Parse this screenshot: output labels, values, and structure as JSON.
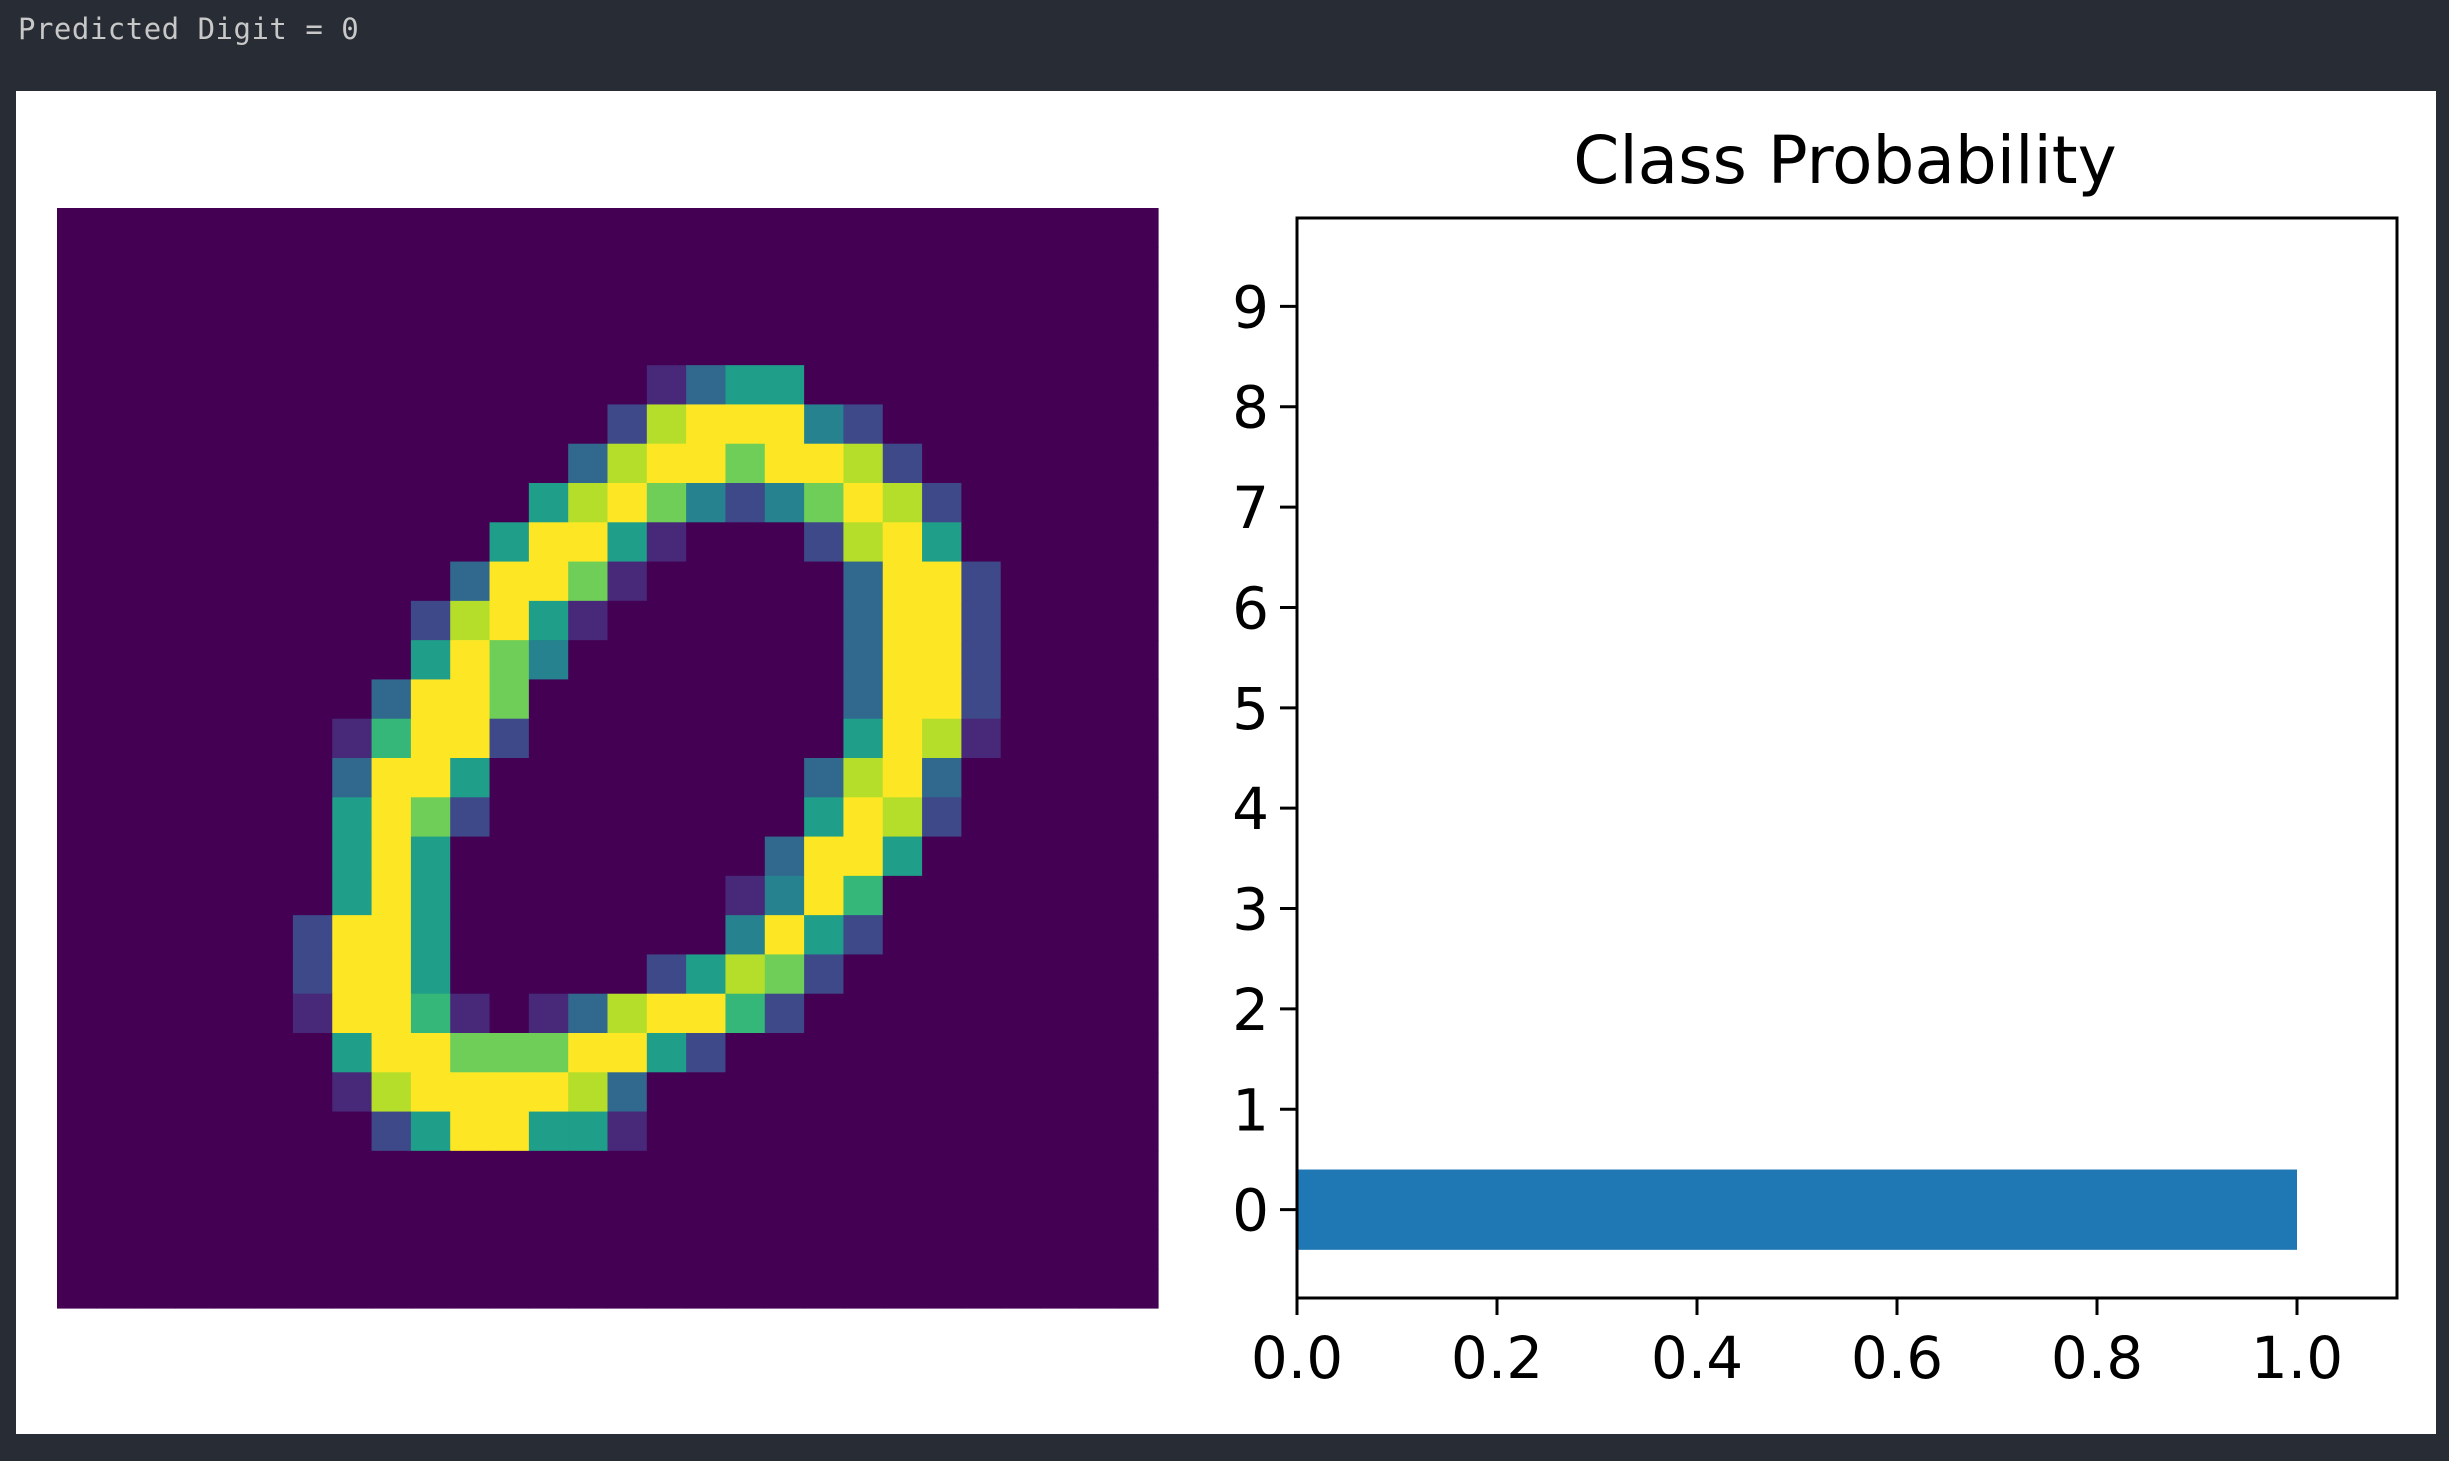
{
  "output": {
    "text": "Predicted Digit = 0"
  },
  "colors": {
    "bar": "#1f77b4",
    "viridis": [
      "#440154",
      "#482878",
      "#3e4989",
      "#31688e",
      "#26828e",
      "#1f9e89",
      "#35b779",
      "#6ece58",
      "#b5de2b",
      "#fde725"
    ]
  },
  "chart_data": [
    {
      "type": "heatmap",
      "colormap": "viridis",
      "rows": 28,
      "cols": 28,
      "value_range": [
        0,
        1
      ],
      "values": [
        [
          0,
          0,
          0,
          0,
          0,
          0,
          0,
          0,
          0,
          0,
          0,
          0,
          0,
          0,
          0,
          0,
          0,
          0,
          0,
          0,
          0,
          0,
          0,
          0,
          0,
          0,
          0,
          0
        ],
        [
          0,
          0,
          0,
          0,
          0,
          0,
          0,
          0,
          0,
          0,
          0,
          0,
          0,
          0,
          0,
          0,
          0,
          0,
          0,
          0,
          0,
          0,
          0,
          0,
          0,
          0,
          0,
          0
        ],
        [
          0,
          0,
          0,
          0,
          0,
          0,
          0,
          0,
          0,
          0,
          0,
          0,
          0,
          0,
          0,
          0,
          0,
          0,
          0,
          0,
          0,
          0,
          0,
          0,
          0,
          0,
          0,
          0
        ],
        [
          0,
          0,
          0,
          0,
          0,
          0,
          0,
          0,
          0,
          0,
          0,
          0,
          0,
          0,
          0,
          0,
          0,
          0,
          0,
          0,
          0,
          0,
          0,
          0,
          0,
          0,
          0,
          0
        ],
        [
          0,
          0,
          0,
          0,
          0,
          0,
          0,
          0,
          0,
          0,
          0,
          0,
          0,
          0,
          0,
          0.15,
          0.3,
          0.55,
          0.55,
          0,
          0,
          0,
          0,
          0,
          0,
          0,
          0,
          0
        ],
        [
          0,
          0,
          0,
          0,
          0,
          0,
          0,
          0,
          0,
          0,
          0,
          0,
          0,
          0,
          0.25,
          0.9,
          1,
          1,
          1,
          0.4,
          0.2,
          0,
          0,
          0,
          0,
          0,
          0,
          0
        ],
        [
          0,
          0,
          0,
          0,
          0,
          0,
          0,
          0,
          0,
          0,
          0,
          0,
          0,
          0.3,
          0.9,
          1,
          1,
          0.8,
          1,
          1,
          0.9,
          0.2,
          0,
          0,
          0,
          0,
          0,
          0
        ],
        [
          0,
          0,
          0,
          0,
          0,
          0,
          0,
          0,
          0,
          0,
          0,
          0,
          0.5,
          0.9,
          1,
          0.8,
          0.4,
          0.2,
          0.4,
          0.8,
          1,
          0.9,
          0.2,
          0,
          0,
          0,
          0,
          0
        ],
        [
          0,
          0,
          0,
          0,
          0,
          0,
          0,
          0,
          0,
          0,
          0,
          0.5,
          1,
          1,
          0.6,
          0.1,
          0,
          0,
          0,
          0.2,
          0.9,
          1,
          0.6,
          0,
          0,
          0,
          0,
          0
        ],
        [
          0,
          0,
          0,
          0,
          0,
          0,
          0,
          0,
          0,
          0,
          0.3,
          1,
          1,
          0.8,
          0.1,
          0,
          0,
          0,
          0,
          0,
          0.3,
          1,
          1,
          0.2,
          0,
          0,
          0,
          0
        ],
        [
          0,
          0,
          0,
          0,
          0,
          0,
          0,
          0,
          0,
          0.2,
          0.9,
          1,
          0.6,
          0.1,
          0,
          0,
          0,
          0,
          0,
          0,
          0.3,
          1,
          1,
          0.2,
          0,
          0,
          0,
          0
        ],
        [
          0,
          0,
          0,
          0,
          0,
          0,
          0,
          0,
          0,
          0.5,
          1,
          0.8,
          0.4,
          0,
          0,
          0,
          0,
          0,
          0,
          0,
          0.3,
          1,
          1,
          0.2,
          0,
          0,
          0,
          0
        ],
        [
          0,
          0,
          0,
          0,
          0,
          0,
          0,
          0,
          0.3,
          1,
          1,
          0.8,
          0,
          0,
          0,
          0,
          0,
          0,
          0,
          0,
          0.3,
          1,
          1,
          0.2,
          0,
          0,
          0,
          0
        ],
        [
          0,
          0,
          0,
          0,
          0,
          0,
          0,
          0.15,
          0.7,
          1,
          1,
          0.2,
          0,
          0,
          0,
          0,
          0,
          0,
          0,
          0,
          0.6,
          1,
          0.9,
          0.15,
          0,
          0,
          0,
          0
        ],
        [
          0,
          0,
          0,
          0,
          0,
          0,
          0,
          0.3,
          1,
          1,
          0.6,
          0.05,
          0,
          0,
          0,
          0,
          0,
          0,
          0,
          0.3,
          0.9,
          1,
          0.3,
          0,
          0,
          0,
          0,
          0
        ],
        [
          0,
          0,
          0,
          0,
          0,
          0,
          0,
          0.5,
          1,
          0.8,
          0.2,
          0,
          0,
          0,
          0,
          0,
          0,
          0,
          0,
          0.5,
          1,
          0.9,
          0.2,
          0,
          0,
          0,
          0,
          0
        ],
        [
          0,
          0,
          0,
          0,
          0,
          0,
          0,
          0.6,
          1,
          0.6,
          0,
          0,
          0,
          0,
          0,
          0,
          0,
          0,
          0.3,
          1,
          1,
          0.55,
          0.05,
          0,
          0,
          0,
          0,
          0
        ],
        [
          0,
          0,
          0,
          0,
          0,
          0,
          0.05,
          0.6,
          1,
          0.6,
          0,
          0,
          0,
          0,
          0,
          0,
          0,
          0.1,
          0.4,
          1,
          0.7,
          0.05,
          0,
          0,
          0,
          0,
          0,
          0
        ],
        [
          0,
          0,
          0,
          0,
          0,
          0,
          0.2,
          1,
          1,
          0.6,
          0,
          0,
          0,
          0,
          0,
          0,
          0,
          0.4,
          1,
          0.6,
          0.2,
          0,
          0,
          0,
          0,
          0,
          0,
          0
        ],
        [
          0,
          0,
          0,
          0,
          0,
          0,
          0.2,
          1,
          1,
          0.6,
          0,
          0,
          0,
          0,
          0,
          0.2,
          0.6,
          0.9,
          0.8,
          0.2,
          0,
          0,
          0,
          0,
          0,
          0,
          0,
          0
        ],
        [
          0,
          0,
          0,
          0,
          0,
          0,
          0.1,
          1,
          1,
          0.7,
          0.1,
          0.05,
          0.1,
          0.3,
          0.9,
          1,
          1,
          0.7,
          0.2,
          0,
          0,
          0,
          0,
          0,
          0,
          0,
          0,
          0
        ],
        [
          0,
          0,
          0,
          0,
          0,
          0,
          0,
          0.6,
          1,
          1,
          0.8,
          0.8,
          0.8,
          1,
          1,
          0.6,
          0.2,
          0,
          0,
          0,
          0,
          0,
          0,
          0,
          0,
          0,
          0,
          0
        ],
        [
          0,
          0,
          0,
          0,
          0,
          0,
          0,
          0.15,
          0.9,
          1,
          1,
          1,
          1,
          0.9,
          0.3,
          0.05,
          0,
          0,
          0,
          0,
          0,
          0,
          0,
          0,
          0,
          0,
          0,
          0
        ],
        [
          0,
          0,
          0,
          0,
          0,
          0,
          0,
          0,
          0.2,
          0.55,
          1,
          1,
          0.6,
          0.5,
          0.15,
          0,
          0,
          0,
          0,
          0,
          0,
          0,
          0,
          0,
          0,
          0,
          0,
          0
        ],
        [
          0,
          0,
          0,
          0,
          0,
          0,
          0,
          0,
          0,
          0,
          0,
          0,
          0,
          0,
          0,
          0,
          0,
          0,
          0,
          0,
          0,
          0,
          0,
          0,
          0,
          0,
          0,
          0
        ],
        [
          0,
          0,
          0,
          0,
          0,
          0,
          0,
          0,
          0,
          0,
          0,
          0,
          0,
          0,
          0,
          0,
          0,
          0,
          0,
          0,
          0,
          0,
          0,
          0,
          0,
          0,
          0,
          0
        ],
        [
          0,
          0,
          0,
          0,
          0,
          0,
          0,
          0,
          0,
          0,
          0,
          0,
          0,
          0,
          0,
          0,
          0,
          0,
          0,
          0,
          0,
          0,
          0,
          0,
          0,
          0,
          0,
          0
        ],
        [
          0,
          0,
          0,
          0,
          0,
          0,
          0,
          0,
          0,
          0,
          0,
          0,
          0,
          0,
          0,
          0,
          0,
          0,
          0,
          0,
          0,
          0,
          0,
          0,
          0,
          0,
          0,
          0
        ]
      ],
      "axis": "off"
    },
    {
      "type": "bar",
      "orientation": "horizontal",
      "title": "Class Probability",
      "categories": [
        "0",
        "1",
        "2",
        "3",
        "4",
        "5",
        "6",
        "7",
        "8",
        "9"
      ],
      "values": [
        1.0,
        0,
        0,
        0,
        0,
        0,
        0,
        0,
        0,
        0
      ],
      "xlim": [
        0,
        1.1
      ],
      "ylim": [
        -0.88,
        9.88
      ],
      "xticks": [
        "0.0",
        "0.2",
        "0.4",
        "0.6",
        "0.8",
        "1.0"
      ],
      "xtick_values": [
        0,
        0.2,
        0.4,
        0.6,
        0.8,
        1.0
      ],
      "grid": false
    }
  ]
}
